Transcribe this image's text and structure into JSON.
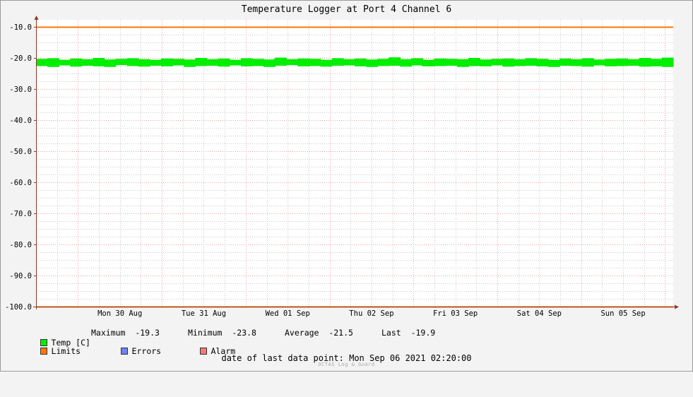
{
  "chart_data": {
    "type": "line",
    "title": "Temperature Logger at Port 4 Channel 6",
    "ylim": [
      -100.0,
      -10.0
    ],
    "y_ticks": [
      "-10.0",
      "-20.0",
      "-30.0",
      "-40.0",
      "-50.0",
      "-60.0",
      "-70.0",
      "-80.0",
      "-90.0",
      "-100.0"
    ],
    "x_labels": [
      "Mon 30 Aug",
      "Tue 31 Aug",
      "Wed 01 Sep",
      "Thu 02 Sep",
      "Fri 03 Sep",
      "Sat 04 Sep",
      "Sun 05 Sep"
    ],
    "x_range": [
      "2021-08-29 12:00",
      "2021-09-06 02:20"
    ],
    "grid": true,
    "limits": [
      -10.0,
      -100.0
    ],
    "series": [
      {
        "name": "Temp [C]",
        "color": "#00ee00",
        "band_low": [
          -22.6,
          -22.9,
          -22.4,
          -22.8,
          -22.5,
          -22.7,
          -22.9,
          -22.3,
          -22.6,
          -22.8,
          -22.5,
          -22.7,
          -22.4,
          -22.9,
          -22.6,
          -22.5,
          -22.8,
          -22.4,
          -22.7,
          -22.6,
          -22.9,
          -22.5,
          -22.3,
          -22.7,
          -22.6,
          -22.8,
          -22.5,
          -22.4,
          -22.7,
          -22.9,
          -22.6,
          -22.5,
          -22.8,
          -22.4,
          -22.7,
          -22.6,
          -22.5,
          -22.9,
          -22.6,
          -22.7,
          -22.4,
          -22.8,
          -22.6,
          -22.5,
          -22.7,
          -22.9,
          -22.5,
          -22.6,
          -22.8,
          -22.4,
          -22.7,
          -22.6,
          -22.5,
          -22.8,
          -22.7,
          -22.9
        ],
        "band_high": [
          -20.3,
          -20.1,
          -20.6,
          -20.2,
          -20.4,
          -20.0,
          -20.5,
          -20.3,
          -20.1,
          -20.4,
          -20.6,
          -20.2,
          -20.3,
          -20.5,
          -20.0,
          -20.4,
          -20.2,
          -20.6,
          -20.1,
          -20.3,
          -20.5,
          -19.9,
          -20.4,
          -20.2,
          -20.3,
          -20.6,
          -20.1,
          -20.4,
          -20.2,
          -20.5,
          -20.3,
          -19.8,
          -20.4,
          -20.1,
          -20.6,
          -20.2,
          -20.3,
          -20.4,
          -20.0,
          -20.5,
          -20.3,
          -20.2,
          -20.4,
          -20.1,
          -20.3,
          -20.6,
          -20.2,
          -20.4,
          -20.1,
          -20.5,
          -20.3,
          -20.2,
          -20.4,
          -20.0,
          -20.3,
          -19.9
        ]
      }
    ],
    "stats": [
      {
        "label": "Maximum",
        "value": "-19.3"
      },
      {
        "label": "Minimum",
        "value": "-23.8"
      },
      {
        "label": "Average",
        "value": "-21.5"
      },
      {
        "label": "Last",
        "value": "-19.9"
      }
    ]
  },
  "legend": {
    "temp": "Temp [C]",
    "limits": "Limits",
    "errors": "Errors",
    "alarm": "Alarm"
  },
  "colors": {
    "temp": "#00ee00",
    "limits": "#ff7700",
    "errors": "#6f82f6",
    "alarm": "#f77a7a",
    "grid_major": "#f0a0a0",
    "grid_minor": "#c8c8c8",
    "axis": "#8b3a2b"
  },
  "footer": {
    "label": "date of last data point:",
    "value": "Mon Sep 06 2021 02:20:00"
  },
  "credit": "OCTAS Log & Guard"
}
